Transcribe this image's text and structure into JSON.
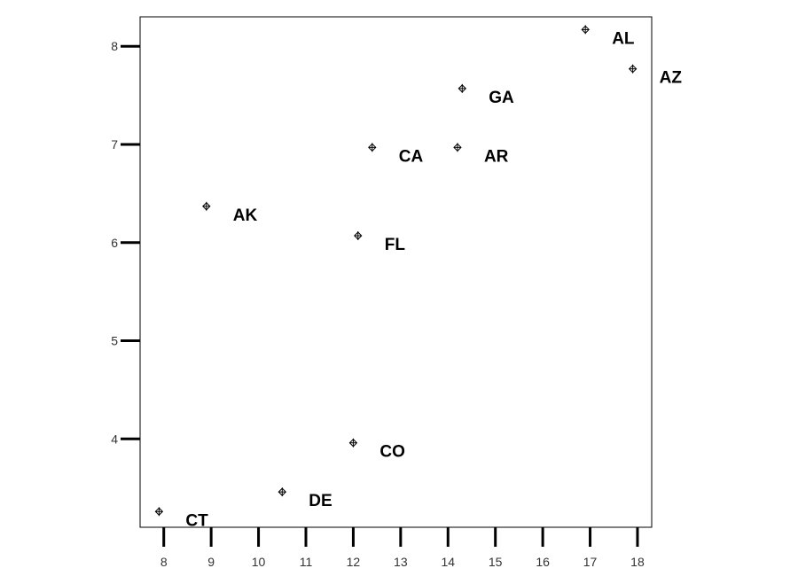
{
  "chart_data": {
    "type": "scatter",
    "title": "",
    "xlabel": "",
    "ylabel": "",
    "xlim": [
      7.5,
      18.3
    ],
    "ylim": [
      3.1,
      8.3
    ],
    "xticks": [
      8,
      9,
      10,
      11,
      12,
      13,
      14,
      15,
      16,
      17,
      18
    ],
    "yticks": [
      4,
      5,
      6,
      7,
      8
    ],
    "grid": false,
    "legend": "none",
    "points": [
      {
        "label": "AL",
        "x": 16.9,
        "y": 8.17
      },
      {
        "label": "AZ",
        "x": 17.9,
        "y": 7.77
      },
      {
        "label": "GA",
        "x": 14.3,
        "y": 7.57
      },
      {
        "label": "CA",
        "x": 12.4,
        "y": 6.97
      },
      {
        "label": "AR",
        "x": 14.2,
        "y": 6.97
      },
      {
        "label": "AK",
        "x": 8.9,
        "y": 6.37
      },
      {
        "label": "FL",
        "x": 12.1,
        "y": 6.07
      },
      {
        "label": "CO",
        "x": 12.0,
        "y": 3.96
      },
      {
        "label": "DE",
        "x": 10.5,
        "y": 3.46
      },
      {
        "label": "CT",
        "x": 7.9,
        "y": 3.26
      }
    ]
  }
}
